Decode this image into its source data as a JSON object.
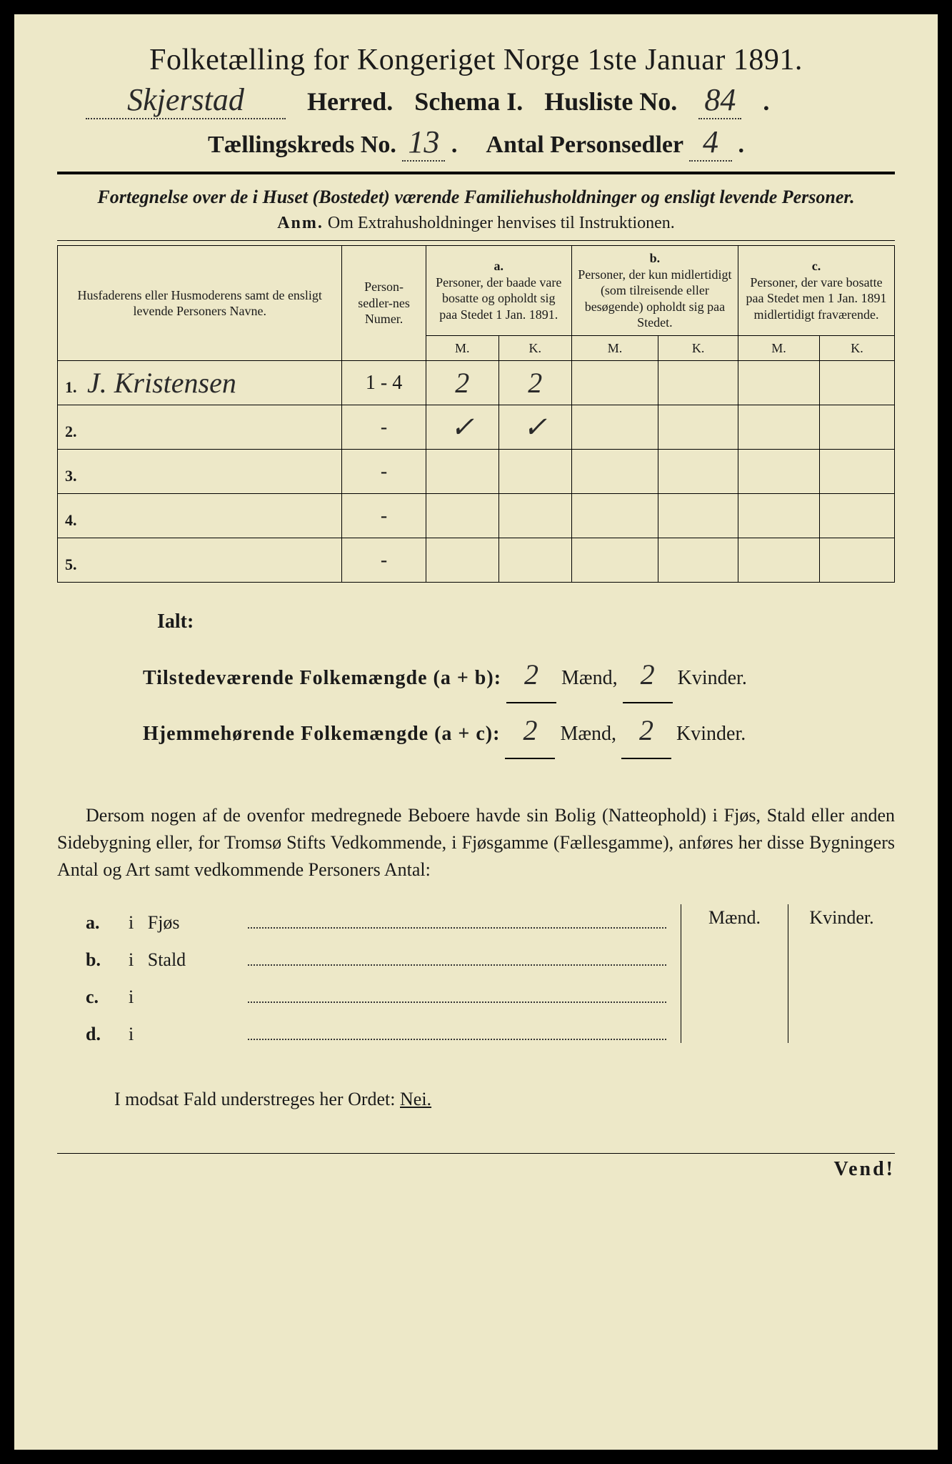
{
  "title": "Folketælling for Kongeriget Norge 1ste Januar 1891.",
  "herred_hand": "Skjerstad",
  "herred_lbl": "Herred.",
  "schema_lbl": "Schema I.",
  "husliste_lbl": "Husliste No.",
  "husliste_no": "84",
  "kreds_lbl": "Tællingskreds No.",
  "kreds_no": "13",
  "personsedler_lbl": "Antal Personsedler",
  "personsedler_no": "4",
  "intro_italic": "Fortegnelse over de i Huset (Bostedet) værende Familiehusholdninger og ensligt levende Personer.",
  "anm_lbl": "Anm.",
  "anm_text": "Om Extrahusholdninger henvises til Instruktionen.",
  "col_name_hdr": "Husfaderens eller Husmoderens samt de ensligt levende Personers Navne.",
  "col_num_hdr": "Person-sedler-nes Numer.",
  "col_a_letter": "a.",
  "col_a_hdr": "Personer, der baade vare bosatte og opholdt sig paa Stedet 1 Jan. 1891.",
  "col_b_letter": "b.",
  "col_b_hdr": "Personer, der kun midlertidigt (som tilreisende eller besøgende) opholdt sig paa Stedet.",
  "col_c_letter": "c.",
  "col_c_hdr": "Personer, der vare bosatte paa Stedet men 1 Jan. 1891 midlertidigt fraværende.",
  "mk_m": "M.",
  "mk_k": "K.",
  "rows": [
    {
      "num": "1.",
      "name": "J. Kristensen",
      "pnum": "1 - 4",
      "am": "2",
      "ak": "2",
      "bm": "",
      "bk": "",
      "cm": "",
      "ck": ""
    },
    {
      "num": "2.",
      "name": "",
      "pnum": "-",
      "am": "✓",
      "ak": "✓",
      "bm": "",
      "bk": "",
      "cm": "",
      "ck": ""
    },
    {
      "num": "3.",
      "name": "",
      "pnum": "-",
      "am": "",
      "ak": "",
      "bm": "",
      "bk": "",
      "cm": "",
      "ck": ""
    },
    {
      "num": "4.",
      "name": "",
      "pnum": "-",
      "am": "",
      "ak": "",
      "bm": "",
      "bk": "",
      "cm": "",
      "ck": ""
    },
    {
      "num": "5.",
      "name": "",
      "pnum": "-",
      "am": "",
      "ak": "",
      "bm": "",
      "bk": "",
      "cm": "",
      "ck": ""
    }
  ],
  "ialt": "Ialt:",
  "tot_tilstede_lbl": "Tilstedeværende Folkemængde (a + b):",
  "tot_hjem_lbl": "Hjemmehørende Folkemængde (a + c):",
  "tot_m": "2",
  "tot_k": "2",
  "tot2_m": "2",
  "tot2_k": "2",
  "maend": "Mænd,",
  "kvinder": "Kvinder.",
  "para": "Dersom nogen af de ovenfor medregnede Beboere havde sin Bolig (Natteophold) i Fjøs, Stald eller anden Sidebygning eller, for Tromsø Stifts Vedkommende, i Fjøsgamme (Fællesgamme), anføres her disse Bygningers Antal og Art samt vedkommende Personers Antal:",
  "bygn": [
    {
      "l": "a.",
      "i": "i",
      "t": "Fjøs"
    },
    {
      "l": "b.",
      "i": "i",
      "t": "Stald"
    },
    {
      "l": "c.",
      "i": "i",
      "t": ""
    },
    {
      "l": "d.",
      "i": "i",
      "t": ""
    }
  ],
  "maend_h": "Mænd.",
  "kvinder_h": "Kvinder.",
  "nei_text": "I modsat Fald understreges her Ordet:",
  "nei": "Nei.",
  "vend": "Vend!",
  "colors": {
    "paper": "#ede8c8",
    "ink": "#1a1a1a",
    "hand": "#2a2a2a"
  }
}
